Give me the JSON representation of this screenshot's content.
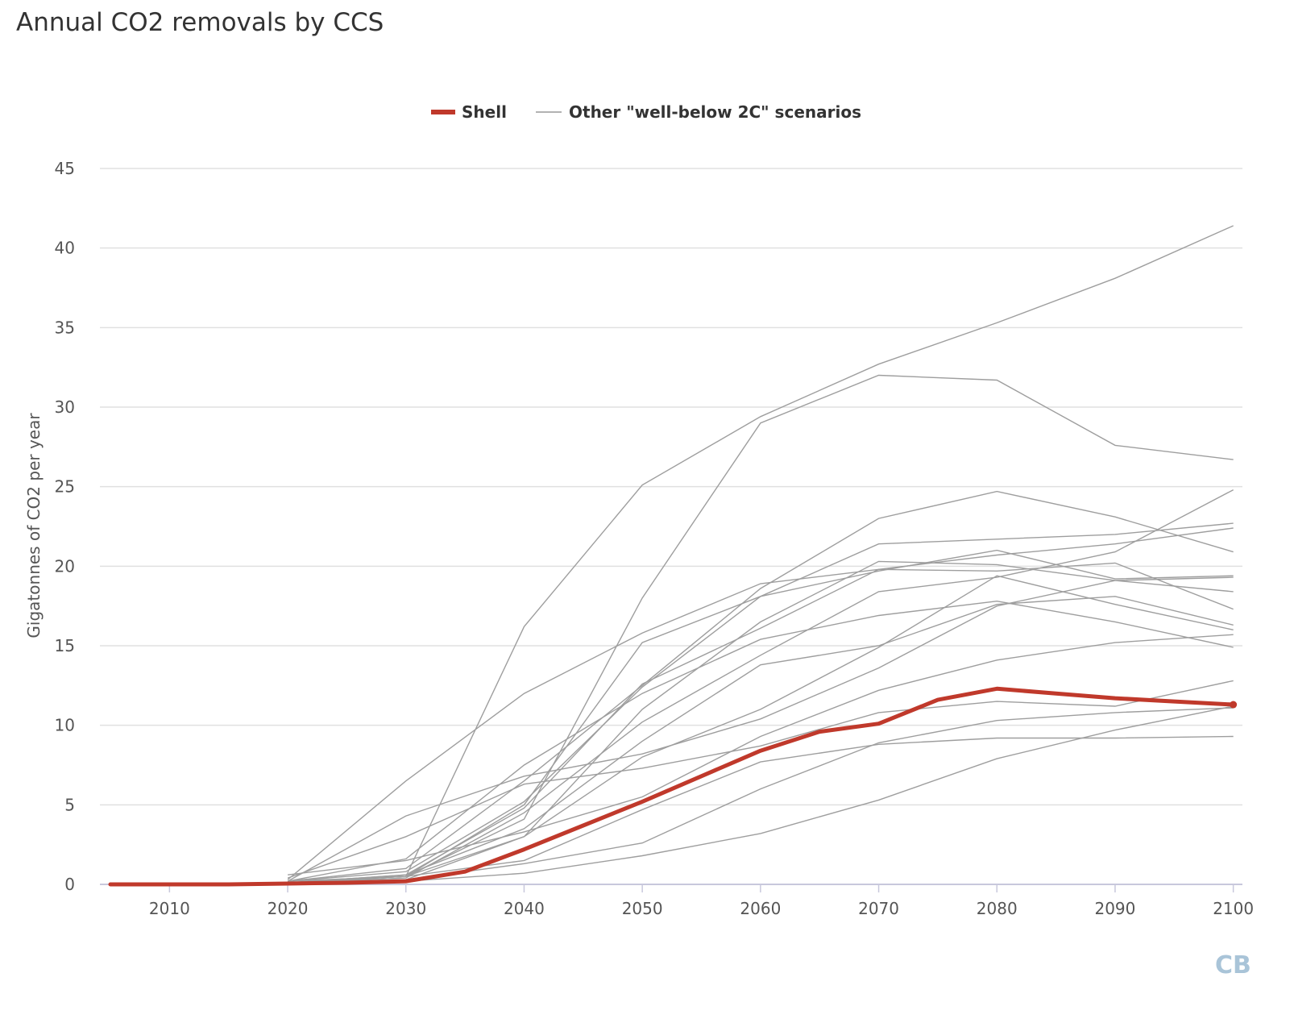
{
  "chart_data": {
    "type": "line",
    "title": "Annual CO2 removals by CCS",
    "ylabel": "Gigatonnes of CO2 per year",
    "xlabel": "",
    "xlim": [
      2005,
      2101
    ],
    "ylim": [
      0,
      45
    ],
    "x_ticks": [
      2010,
      2020,
      2030,
      2040,
      2050,
      2060,
      2070,
      2080,
      2090,
      2100
    ],
    "y_ticks": [
      0,
      5,
      10,
      15,
      20,
      25,
      30,
      35,
      40,
      45
    ],
    "grid": true,
    "legend_position": "top-center",
    "legend": [
      {
        "label": "Shell",
        "color": "#c0392b"
      },
      {
        "label": "Other \"well-below 2C\" scenarios",
        "color": "#999999"
      }
    ],
    "colors": {
      "shell": "#c0392b",
      "other": "#9e9e9e",
      "grid": "#e0e0e0"
    },
    "shell": {
      "x": [
        2005,
        2010,
        2015,
        2020,
        2025,
        2030,
        2035,
        2040,
        2045,
        2050,
        2055,
        2060,
        2065,
        2070,
        2075,
        2080,
        2085,
        2090,
        2095,
        2100
      ],
      "y": [
        0,
        0,
        0,
        0.05,
        0.1,
        0.2,
        0.8,
        2.2,
        3.7,
        5.2,
        6.8,
        8.4,
        9.6,
        10.1,
        11.6,
        12.3,
        12.0,
        11.7,
        11.5,
        11.3
      ]
    },
    "others": [
      {
        "x": [
          2020,
          2030,
          2040,
          2050,
          2060,
          2070,
          2080,
          2090,
          2100
        ],
        "y": [
          0.3,
          6.5,
          12.0,
          15.8,
          18.9,
          19.8,
          19.7,
          20.2,
          17.3
        ]
      },
      {
        "x": [
          2020,
          2030,
          2040,
          2050,
          2060,
          2070,
          2080,
          2090,
          2100
        ],
        "y": [
          0.2,
          0.5,
          16.2,
          25.1,
          29.4,
          32.7,
          35.3,
          38.1,
          41.4
        ]
      },
      {
        "x": [
          2020,
          2030,
          2040,
          2050,
          2060,
          2070,
          2080,
          2090,
          2100
        ],
        "y": [
          0.1,
          0.5,
          4.1,
          18.0,
          29.0,
          32.0,
          31.7,
          27.6,
          26.7
        ]
      },
      {
        "x": [
          2020,
          2030,
          2040,
          2050,
          2060,
          2070,
          2080,
          2090,
          2100
        ],
        "y": [
          0.2,
          1.0,
          6.5,
          12.5,
          18.6,
          23.0,
          24.7,
          23.1,
          20.9
        ]
      },
      {
        "x": [
          2020,
          2030,
          2040,
          2050,
          2060,
          2070,
          2080,
          2090,
          2100
        ],
        "y": [
          0.1,
          0.5,
          5.0,
          15.2,
          18.1,
          21.4,
          21.7,
          22.0,
          22.7
        ]
      },
      {
        "x": [
          2020,
          2030,
          2040,
          2050,
          2060,
          2070,
          2080,
          2090,
          2100
        ],
        "y": [
          0.1,
          0.6,
          4.8,
          12.6,
          16.1,
          19.8,
          20.7,
          21.4,
          22.4
        ]
      },
      {
        "x": [
          2020,
          2030,
          2040,
          2050,
          2060,
          2070,
          2080,
          2090,
          2100
        ],
        "y": [
          0.2,
          1.6,
          7.5,
          12.0,
          15.4,
          16.9,
          17.8,
          16.5,
          14.9
        ]
      },
      {
        "x": [
          2020,
          2030,
          2040,
          2050,
          2060,
          2070,
          2080,
          2090,
          2100
        ],
        "y": [
          0.1,
          0.5,
          3.0,
          11.0,
          16.5,
          20.3,
          20.1,
          19.1,
          18.4
        ]
      },
      {
        "x": [
          2020,
          2030,
          2040,
          2050,
          2060,
          2070,
          2080,
          2090,
          2100
        ],
        "y": [
          0.1,
          0.4,
          4.5,
          10.2,
          14.4,
          18.4,
          19.3,
          20.9,
          24.8
        ]
      },
      {
        "x": [
          2020,
          2030,
          2040,
          2050,
          2060,
          2070,
          2080,
          2090,
          2100
        ],
        "y": [
          0.1,
          0.3,
          3.0,
          8.0,
          11.0,
          14.9,
          19.4,
          17.6,
          16.0
        ]
      },
      {
        "x": [
          2020,
          2030,
          2040,
          2050,
          2060,
          2070,
          2080,
          2090,
          2100
        ],
        "y": [
          0.2,
          4.3,
          6.8,
          8.2,
          10.4,
          13.6,
          17.5,
          19.1,
          19.3
        ]
      },
      {
        "x": [
          2020,
          2030,
          2040,
          2050,
          2060,
          2070,
          2080,
          2090,
          2100
        ],
        "y": [
          0.4,
          3.0,
          6.3,
          7.3,
          8.7,
          10.8,
          11.5,
          11.2,
          12.8
        ]
      },
      {
        "x": [
          2020,
          2030,
          2040,
          2050,
          2060,
          2070,
          2080,
          2090,
          2100
        ],
        "y": [
          0.6,
          1.5,
          3.3,
          5.5,
          9.3,
          12.2,
          14.1,
          15.2,
          15.7
        ]
      },
      {
        "x": [
          2020,
          2030,
          2040,
          2050,
          2060,
          2070,
          2080,
          2090,
          2100
        ],
        "y": [
          0.1,
          0.5,
          1.5,
          4.7,
          7.7,
          8.8,
          9.2,
          9.2,
          9.3
        ]
      },
      {
        "x": [
          2020,
          2030,
          2040,
          2050,
          2060,
          2070,
          2080,
          2090,
          2100
        ],
        "y": [
          0.1,
          0.3,
          1.3,
          2.6,
          6.0,
          8.9,
          10.3,
          10.8,
          11.1
        ]
      },
      {
        "x": [
          2020,
          2030,
          2040,
          2050,
          2060,
          2070,
          2080,
          2090,
          2100
        ],
        "y": [
          0.1,
          0.2,
          0.7,
          1.8,
          3.2,
          5.3,
          7.9,
          9.7,
          11.2
        ]
      },
      {
        "x": [
          2020,
          2030,
          2040,
          2050,
          2060,
          2070,
          2080,
          2090,
          2100
        ],
        "y": [
          0.2,
          0.8,
          5.2,
          12.4,
          18.1,
          19.7,
          21.0,
          19.2,
          19.4
        ]
      },
      {
        "x": [
          2020,
          2030,
          2040,
          2050,
          2060,
          2070,
          2080,
          2090,
          2100
        ],
        "y": [
          0.1,
          0.6,
          3.5,
          9.0,
          13.8,
          15.0,
          17.6,
          18.1,
          16.3
        ]
      }
    ]
  },
  "logo": {
    "text": "CB"
  }
}
